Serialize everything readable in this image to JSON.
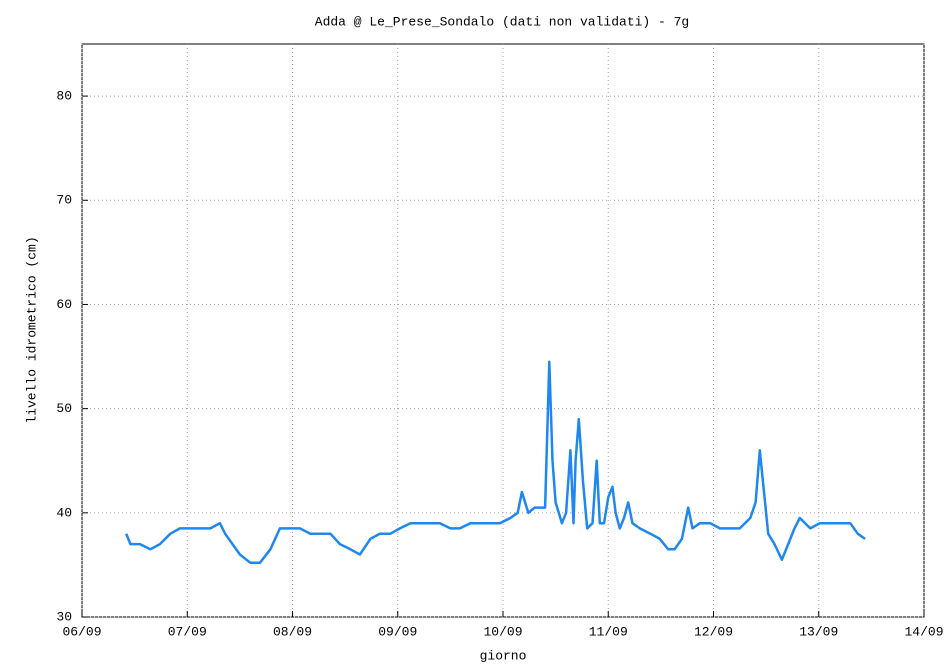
{
  "chart_data": {
    "type": "line",
    "title": "Adda @ Le_Prese_Sondalo (dati non validati) - 7g",
    "x_label": "giorno",
    "y_label": "livello idrometrico (cm)",
    "x": [
      6.42,
      6.46,
      6.55,
      6.65,
      6.74,
      6.84,
      6.93,
      7.03,
      7.12,
      7.22,
      7.31,
      7.36,
      7.43,
      7.5,
      7.6,
      7.69,
      7.79,
      7.88,
      7.98,
      8.07,
      8.17,
      8.26,
      8.36,
      8.45,
      8.55,
      8.64,
      8.74,
      8.83,
      8.93,
      9.02,
      9.12,
      9.21,
      9.31,
      9.4,
      9.5,
      9.59,
      9.69,
      9.78,
      9.88,
      9.97,
      10.07,
      10.14,
      10.18,
      10.24,
      10.3,
      10.4,
      10.44,
      10.47,
      10.5,
      10.56,
      10.6,
      10.64,
      10.67,
      10.69,
      10.72,
      10.76,
      10.8,
      10.85,
      10.89,
      10.92,
      10.96,
      11.0,
      11.04,
      11.07,
      11.11,
      11.15,
      11.19,
      11.23,
      11.3,
      11.4,
      11.49,
      11.57,
      11.63,
      11.7,
      11.76,
      11.8,
      11.87,
      11.97,
      12.06,
      12.16,
      12.25,
      12.35,
      12.4,
      12.44,
      12.48,
      12.52,
      12.58,
      12.65,
      12.71,
      12.77,
      12.82,
      12.92,
      13.01,
      13.11,
      13.2,
      13.3,
      13.37,
      13.44
    ],
    "series": [
      {
        "name": "livello",
        "color": "#1e88f0",
        "values": [
          38,
          37,
          37,
          36.5,
          37,
          38,
          38.5,
          38.5,
          38.5,
          38.5,
          39,
          38,
          37,
          36,
          35.2,
          35.2,
          36.5,
          38.5,
          38.5,
          38.5,
          38,
          38,
          38,
          37,
          36.5,
          36,
          37.5,
          38,
          38,
          38.5,
          39,
          39,
          39,
          39,
          38.5,
          38.5,
          39,
          39,
          39,
          39,
          39.5,
          40,
          42,
          40,
          40.5,
          40.5,
          54.5,
          45,
          41,
          39,
          40,
          46,
          39,
          45,
          49,
          43,
          38.5,
          39,
          45,
          39,
          39,
          41.5,
          42.5,
          40,
          38.5,
          39.5,
          41,
          39,
          38.5,
          38,
          37.5,
          36.5,
          36.5,
          37.5,
          40.5,
          38.5,
          39,
          39,
          38.5,
          38.5,
          38.5,
          39.5,
          41,
          46,
          42,
          38,
          37,
          35.5,
          37,
          38.5,
          39.5,
          38.5,
          39,
          39,
          39,
          39,
          38,
          37.5
        ]
      }
    ],
    "xlim": [
      6,
      14
    ],
    "xticks": [
      {
        "value": 6,
        "label": "06/09"
      },
      {
        "value": 7,
        "label": "07/09"
      },
      {
        "value": 8,
        "label": "08/09"
      },
      {
        "value": 9,
        "label": "09/09"
      },
      {
        "value": 10,
        "label": "10/09"
      },
      {
        "value": 11,
        "label": "11/09"
      },
      {
        "value": 12,
        "label": "12/09"
      },
      {
        "value": 13,
        "label": "13/09"
      },
      {
        "value": 14,
        "label": "14/09"
      }
    ],
    "ylim": [
      30,
      85
    ],
    "yticks": [
      30,
      40,
      50,
      60,
      70,
      80
    ],
    "grid": true
  }
}
